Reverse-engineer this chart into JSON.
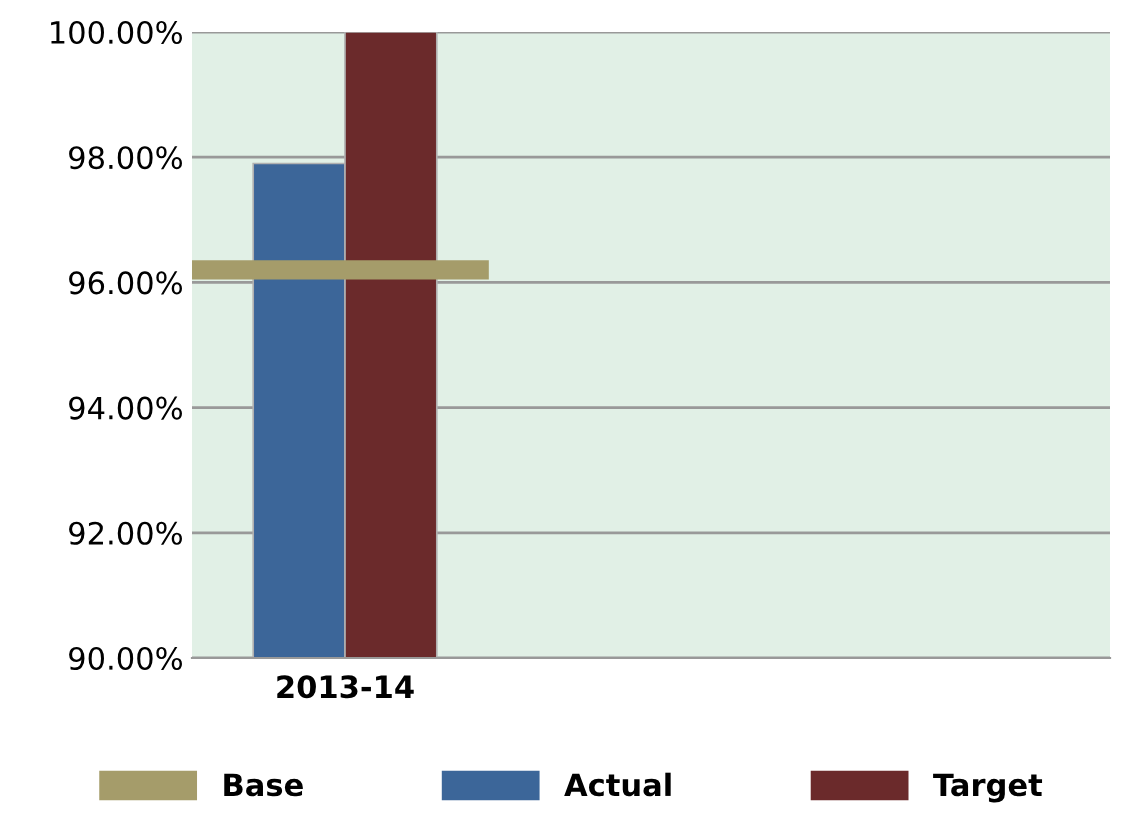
{
  "chart_data": {
    "type": "bar",
    "categories": [
      "2013-14",
      null,
      null
    ],
    "series": [
      {
        "name": "Actual",
        "color": "#3c6699",
        "values": [
          97.9,
          null,
          null
        ]
      },
      {
        "name": "Target",
        "color": "#6b2a2b",
        "values": [
          100,
          null,
          null
        ]
      }
    ],
    "ylim": [
      90,
      100
    ],
    "yticks": [
      {
        "value": 90,
        "label": "90.00%"
      },
      {
        "value": 92,
        "label": "92.00%"
      },
      {
        "value": 94,
        "label": "94.00%"
      },
      {
        "value": 96,
        "label": "96.00%"
      },
      {
        "value": 98,
        "label": "98.00%"
      },
      {
        "value": 100,
        "label": "100.00%"
      }
    ],
    "ref_lines": [
      {
        "axis": "y",
        "value": 96.2,
        "label": "Base",
        "color": "#a59c6a"
      }
    ],
    "grid": "y",
    "legend": "bottom"
  }
}
